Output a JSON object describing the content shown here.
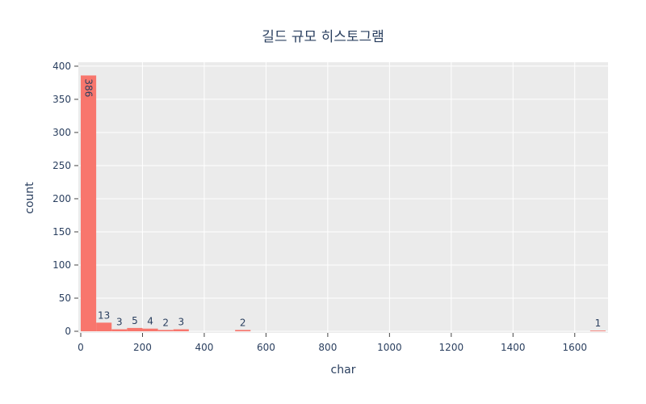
{
  "chart_data": {
    "type": "bar",
    "title": "길드 규모 히스토그램",
    "xlabel": "char",
    "ylabel": "count",
    "xlim": [
      0,
      1700
    ],
    "ylim": [
      0,
      406
    ],
    "x_ticks": [
      0,
      200,
      400,
      600,
      800,
      1000,
      1200,
      1400,
      1600
    ],
    "y_ticks": [
      0,
      50,
      100,
      150,
      200,
      250,
      300,
      350,
      400
    ],
    "bin_width": 50,
    "bars": [
      {
        "x0": 0,
        "x1": 50,
        "value": 386,
        "label": "386",
        "label_rotated": true
      },
      {
        "x0": 50,
        "x1": 100,
        "value": 13,
        "label": "13"
      },
      {
        "x0": 100,
        "x1": 150,
        "value": 3,
        "label": "3"
      },
      {
        "x0": 150,
        "x1": 200,
        "value": 5,
        "label": "5"
      },
      {
        "x0": 200,
        "x1": 250,
        "value": 4,
        "label": "4"
      },
      {
        "x0": 250,
        "x1": 300,
        "value": 2,
        "label": "2"
      },
      {
        "x0": 300,
        "x1": 350,
        "value": 3,
        "label": "3"
      },
      {
        "x0": 500,
        "x1": 550,
        "value": 2,
        "label": "2"
      },
      {
        "x0": 1650,
        "x1": 1700,
        "value": 1,
        "label": "1"
      }
    ],
    "bar_color": "#f8766d",
    "plot_background": "#ebebeb",
    "grid_color": "#ffffff",
    "grid": true,
    "legend": "none"
  }
}
